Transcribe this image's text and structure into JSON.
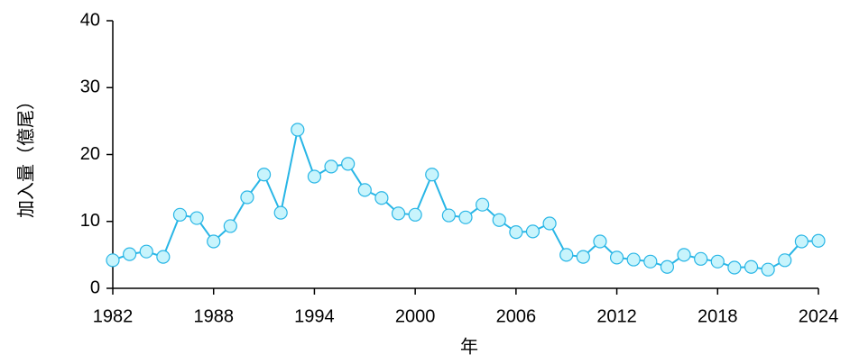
{
  "chart_data": {
    "type": "line",
    "x_label": "年",
    "y_label": "加入量（億尾）",
    "x": [
      1982,
      1983,
      1984,
      1985,
      1986,
      1987,
      1988,
      1989,
      1990,
      1991,
      1992,
      1993,
      1994,
      1995,
      1996,
      1997,
      1998,
      1999,
      2000,
      2001,
      2002,
      2003,
      2004,
      2005,
      2006,
      2007,
      2008,
      2009,
      2010,
      2011,
      2012,
      2013,
      2014,
      2015,
      2016,
      2017,
      2018,
      2019,
      2020,
      2021,
      2022,
      2023,
      2024
    ],
    "series": [
      {
        "color": "#29b6e6",
        "marker_fill": "#c8f4fc",
        "values": [
          4.2,
          5.1,
          5.5,
          4.7,
          11.0,
          10.5,
          7.0,
          9.3,
          13.6,
          17.0,
          11.3,
          23.7,
          16.7,
          18.2,
          18.6,
          14.7,
          13.5,
          11.2,
          11.0,
          17.0,
          10.9,
          10.6,
          12.5,
          10.2,
          8.4,
          8.5,
          9.7,
          5.0,
          4.7,
          7.0,
          4.6,
          4.3,
          4.0,
          3.2,
          5.0,
          4.4,
          4.0,
          3.1,
          3.2,
          2.8,
          4.2,
          7.0,
          7.1
        ]
      }
    ],
    "xlim": [
      1982,
      2024
    ],
    "xticks": [
      1982,
      1988,
      1994,
      2000,
      2006,
      2012,
      2018,
      2024
    ],
    "ylim": [
      0,
      40
    ],
    "yticks": [
      0,
      10,
      20,
      30,
      40
    ],
    "grid": false
  }
}
